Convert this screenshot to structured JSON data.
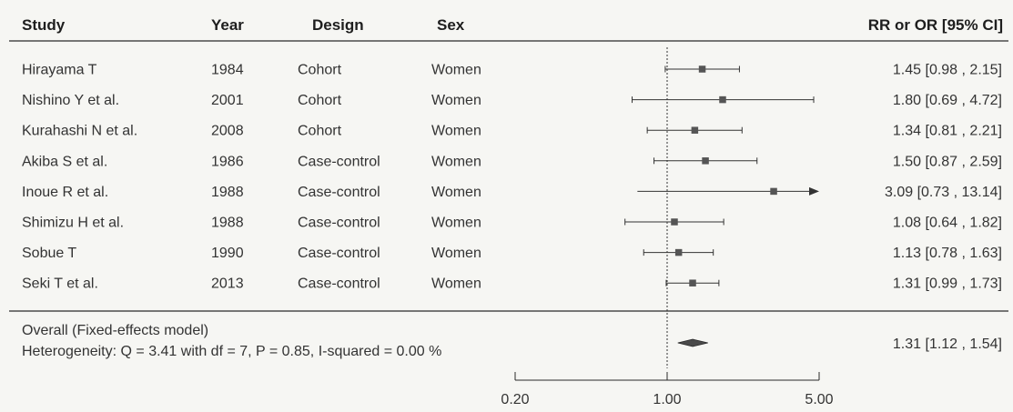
{
  "chart_data": {
    "type": "forest",
    "columns": {
      "study": "Study",
      "year": "Year",
      "design": "Design",
      "sex": "Sex",
      "estimate": "RR or OR [95% CI]"
    },
    "rows": [
      {
        "study": "Hirayama T",
        "year": "1984",
        "design": "Cohort",
        "sex": "Women",
        "est": 1.45,
        "lo": 0.98,
        "hi": 2.15,
        "label": "1.45 [0.98 ,  2.15]",
        "arrow": false
      },
      {
        "study": "Nishino Y et al.",
        "year": "2001",
        "design": "Cohort",
        "sex": "Women",
        "est": 1.8,
        "lo": 0.69,
        "hi": 4.72,
        "label": "1.80 [0.69 ,  4.72]",
        "arrow": false
      },
      {
        "study": "Kurahashi N et al.",
        "year": "2008",
        "design": "Cohort",
        "sex": "Women",
        "est": 1.34,
        "lo": 0.81,
        "hi": 2.21,
        "label": "1.34 [0.81 ,  2.21]",
        "arrow": false
      },
      {
        "study": "Akiba S et al.",
        "year": "1986",
        "design": "Case-control",
        "sex": "Women",
        "est": 1.5,
        "lo": 0.87,
        "hi": 2.59,
        "label": "1.50 [0.87 ,  2.59]",
        "arrow": false
      },
      {
        "study": "Inoue R et al.",
        "year": "1988",
        "design": "Case-control",
        "sex": "Women",
        "est": 3.09,
        "lo": 0.73,
        "hi": 13.14,
        "label": "3.09 [0.73 , 13.14]",
        "arrow": true
      },
      {
        "study": "Shimizu H et al.",
        "year": "1988",
        "design": "Case-control",
        "sex": "Women",
        "est": 1.08,
        "lo": 0.64,
        "hi": 1.82,
        "label": "1.08 [0.64 ,  1.82]",
        "arrow": false
      },
      {
        "study": "Sobue T",
        "year": "1990",
        "design": "Case-control",
        "sex": "Women",
        "est": 1.13,
        "lo": 0.78,
        "hi": 1.63,
        "label": "1.13 [0.78 ,  1.63]",
        "arrow": false
      },
      {
        "study": "Seki T et al.",
        "year": "2013",
        "design": "Case-control",
        "sex": "Women",
        "est": 1.31,
        "lo": 0.99,
        "hi": 1.73,
        "label": "1.31 [0.99 ,  1.73]",
        "arrow": false
      }
    ],
    "overall": {
      "label": "Overall (Fixed-effects model)",
      "est": 1.31,
      "lo": 1.12,
      "hi": 1.54,
      "ci_label": "1.31 [1.12 ,  1.54]"
    },
    "heterogeneity": "Heterogeneity: Q = 3.41 with df = 7,  P = 0.85,  I-squared = 0.00 %",
    "x_scale": "log",
    "x_range": [
      0.2,
      5.0
    ],
    "reference_line": 1.0,
    "x_ticks": [
      {
        "value": 0.2,
        "label": "0.20"
      },
      {
        "value": 1.0,
        "label": "1.00"
      },
      {
        "value": 5.0,
        "label": "5.00"
      }
    ],
    "colors": {
      "marker": "#555555",
      "line": "#333333",
      "text": "#333333"
    }
  }
}
